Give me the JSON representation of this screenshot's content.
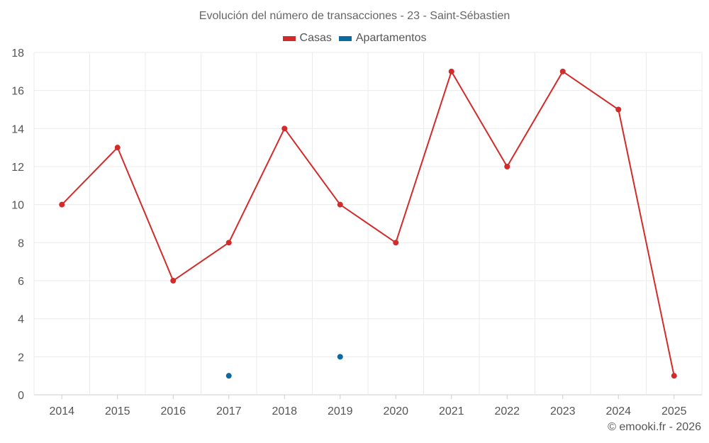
{
  "chart_data": {
    "type": "line",
    "title": "Evolución del número de transacciones - 23 - Saint-Sébastien",
    "xlabel": "",
    "ylabel": "",
    "categories": [
      "2014",
      "2015",
      "2016",
      "2017",
      "2018",
      "2019",
      "2020",
      "2021",
      "2022",
      "2023",
      "2024",
      "2025"
    ],
    "ylim": [
      0,
      18
    ],
    "yticks": [
      0,
      2,
      4,
      6,
      8,
      10,
      12,
      14,
      16,
      18
    ],
    "grid": true,
    "legend_position": "top-center",
    "series": [
      {
        "name": "Casas",
        "color": "#d32a2a",
        "values": [
          10,
          13,
          6,
          8,
          14,
          10,
          8,
          17,
          12,
          17,
          15,
          1
        ]
      },
      {
        "name": "Apartamentos",
        "color": "#0b6aa2",
        "values": [
          null,
          null,
          null,
          1,
          null,
          2,
          null,
          null,
          null,
          null,
          null,
          null
        ]
      }
    ]
  },
  "credit": "© emooki.fr - 2026"
}
